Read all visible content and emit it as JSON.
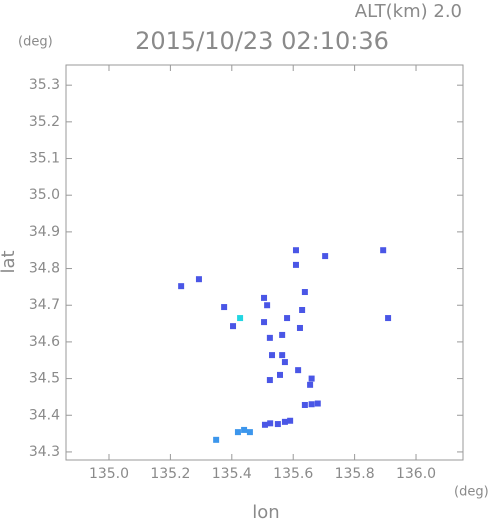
{
  "chart_data": {
    "type": "scatter",
    "title": "2015/10/23 02:10:36",
    "corner_label": "ALT(km) 2.0",
    "y_unit": "(deg)",
    "x_unit": "(deg)",
    "x_label": "lon",
    "y_label": "lat",
    "xlim": [
      134.86,
      136.153
    ],
    "ylim": [
      34.278,
      35.355
    ],
    "xticks": [
      {
        "value": 135,
        "label": "135.0"
      },
      135.2,
      135.4,
      135.6,
      135.8,
      {
        "value": 136,
        "label": "136.0"
      }
    ],
    "yticks": [
      34.3,
      34.4,
      34.5,
      34.6,
      34.7,
      34.8,
      34.9,
      {
        "value": 35,
        "label": "35.0"
      },
      35.1,
      35.2,
      35.3
    ],
    "series": [
      {
        "color": "#4a56e6",
        "x": [
          135.235,
          135.293,
          135.375,
          135.404,
          135.505,
          135.505,
          135.515,
          135.524,
          135.531,
          135.564,
          135.573,
          135.557,
          135.524,
          135.609,
          135.609,
          135.704,
          135.638,
          135.629,
          135.622,
          135.58,
          135.564,
          135.616,
          135.655,
          135.66,
          135.638,
          135.66,
          135.68,
          135.573,
          135.59,
          135.55,
          135.508,
          135.525,
          135.893,
          135.909
        ],
        "y": [
          34.752,
          34.771,
          34.695,
          34.643,
          34.72,
          34.654,
          34.7,
          34.611,
          34.564,
          34.564,
          34.545,
          34.51,
          34.496,
          34.81,
          34.85,
          34.834,
          34.736,
          34.687,
          34.638,
          34.665,
          34.619,
          34.523,
          34.483,
          34.5,
          34.428,
          34.43,
          34.432,
          34.382,
          34.385,
          34.376,
          34.374,
          34.378,
          34.85,
          34.665
        ]
      },
      {
        "color": "#3c96ec",
        "x": [
          135.459,
          135.42,
          135.44,
          135.349
        ],
        "y": [
          34.354,
          34.354,
          34.36,
          34.333
        ]
      },
      {
        "color": "#22d6e2",
        "x": [
          135.427
        ],
        "y": [
          34.665
        ]
      }
    ]
  }
}
